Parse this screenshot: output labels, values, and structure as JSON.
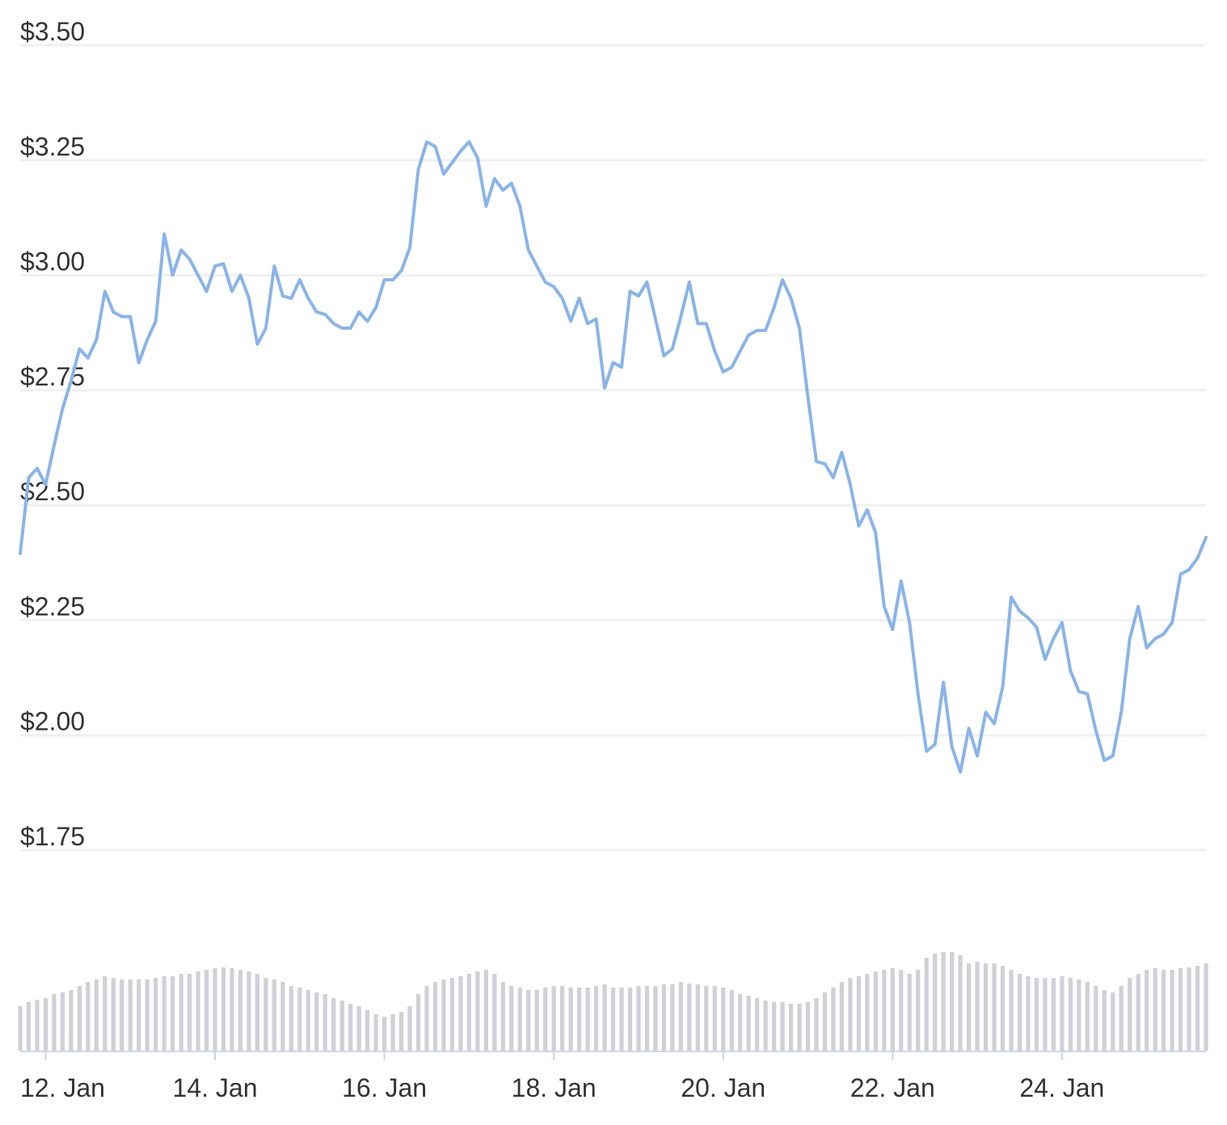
{
  "chart_data": {
    "type": "line",
    "xlim": [
      0,
      140
    ],
    "xticks": [
      {
        "value": 3,
        "label": "12. Jan"
      },
      {
        "value": 23,
        "label": "14. Jan"
      },
      {
        "value": 43,
        "label": "16. Jan"
      },
      {
        "value": 63,
        "label": "18. Jan"
      },
      {
        "value": 83,
        "label": "20. Jan"
      },
      {
        "value": 103,
        "label": "22. Jan"
      },
      {
        "value": 123,
        "label": "24. Jan"
      }
    ],
    "ylim": [
      1.75,
      3.5
    ],
    "yticks": [
      {
        "value": 1.75,
        "label": "$1.75"
      },
      {
        "value": 2,
        "label": "$2.00"
      },
      {
        "value": 2.25,
        "label": "$2.25"
      },
      {
        "value": 2.5,
        "label": "$2.50"
      },
      {
        "value": 2.75,
        "label": "$2.75"
      },
      {
        "value": 3,
        "label": "$3.00"
      },
      {
        "value": 3.25,
        "label": "$3.25"
      },
      {
        "value": 3.5,
        "label": "$3.50"
      }
    ],
    "y2lim": [
      0,
      140
    ],
    "grid": true,
    "series": [
      {
        "color": "#8ab4e8",
        "values": [
          2.395,
          2.56,
          2.58,
          2.545,
          2.63,
          2.71,
          2.77,
          2.84,
          2.82,
          2.86,
          2.965,
          2.92,
          2.91,
          2.91,
          2.81,
          2.86,
          2.9,
          3.09,
          3.0,
          3.055,
          3.035,
          3.0,
          2.965,
          3.02,
          3.025,
          2.965,
          3.0,
          2.95,
          2.85,
          2.885,
          3.02,
          2.955,
          2.95,
          2.99,
          2.95,
          2.92,
          2.915,
          2.895,
          2.885,
          2.885,
          2.92,
          2.9,
          2.93,
          2.99,
          2.99,
          3.01,
          3.06,
          3.23,
          3.29,
          3.28,
          3.22,
          3.245,
          3.27,
          3.29,
          3.255,
          3.15,
          3.21,
          3.185,
          3.2,
          3.15,
          3.055,
          3.02,
          2.985,
          2.975,
          2.95,
          2.9,
          2.95,
          2.895,
          2.905,
          2.755,
          2.81,
          2.8,
          2.965,
          2.955,
          2.985,
          2.905,
          2.825,
          2.84,
          2.91,
          2.985,
          2.895,
          2.895,
          2.835,
          2.79,
          2.8,
          2.835,
          2.87,
          2.88,
          2.88,
          2.93,
          2.99,
          2.95,
          2.885,
          2.735,
          2.595,
          2.59,
          2.56,
          2.615,
          2.545,
          2.455,
          2.49,
          2.44,
          2.28,
          2.23,
          2.335,
          2.245,
          2.09,
          1.965,
          1.98,
          2.115,
          1.975,
          1.92,
          2.015,
          1.955,
          2.05,
          2.025,
          2.105,
          2.3,
          2.27,
          2.255,
          2.235,
          2.165,
          2.21,
          2.245,
          2.14,
          2.095,
          2.09,
          2.01,
          1.945,
          1.955,
          2.05,
          2.21,
          2.28,
          2.19,
          2.21,
          2.22,
          2.245,
          2.35,
          2.36,
          2.385,
          2.43
        ]
      },
      {
        "color": "#d0d0d6",
        "type": "bar",
        "axis": "y2",
        "values": [
          55,
          60,
          63,
          65,
          70,
          72,
          75,
          80,
          85,
          88,
          92,
          90,
          88,
          88,
          88,
          88,
          90,
          92,
          92,
          95,
          95,
          98,
          100,
          102,
          103,
          102,
          100,
          98,
          95,
          90,
          88,
          85,
          80,
          78,
          75,
          72,
          70,
          65,
          62,
          58,
          55,
          50,
          45,
          42,
          45,
          48,
          55,
          70,
          80,
          85,
          88,
          90,
          92,
          95,
          98,
          100,
          95,
          85,
          80,
          78,
          75,
          75,
          78,
          80,
          80,
          78,
          78,
          78,
          80,
          82,
          78,
          78,
          78,
          80,
          80,
          80,
          82,
          82,
          85,
          83,
          82,
          80,
          80,
          78,
          75,
          70,
          68,
          65,
          62,
          60,
          60,
          58,
          58,
          60,
          65,
          72,
          78,
          85,
          90,
          92,
          95,
          98,
          100,
          102,
          100,
          95,
          100,
          115,
          120,
          122,
          122,
          118,
          108,
          110,
          108,
          108,
          105,
          100,
          95,
          92,
          90,
          90,
          90,
          92,
          90,
          88,
          85,
          80,
          75,
          72,
          80,
          90,
          95,
          100,
          102,
          100,
          100,
          102,
          103,
          105,
          108
        ]
      }
    ]
  }
}
